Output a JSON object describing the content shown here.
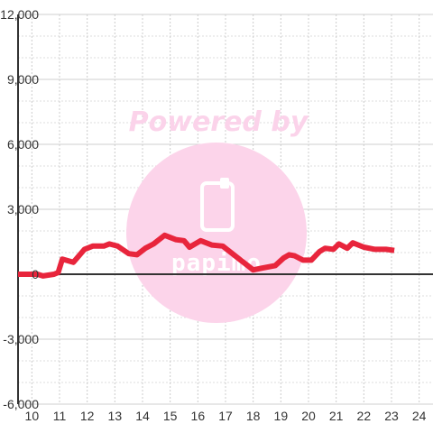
{
  "watermark": {
    "powered_by": "Powered by",
    "logo_text": "papimo",
    "logo_icon": "phone-icon"
  },
  "chart_data": {
    "type": "line",
    "title": "",
    "xlabel": "",
    "ylabel": "",
    "xlim": [
      9.5,
      24.5
    ],
    "ylim": [
      -6000,
      12000
    ],
    "x_ticks": [
      10,
      11,
      12,
      13,
      14,
      15,
      16,
      17,
      18,
      19,
      20,
      21,
      22,
      23,
      24
    ],
    "x_tick_labels": [
      "10",
      "11",
      "12",
      "13",
      "14",
      "15",
      "16",
      "17",
      "18",
      "19",
      "20",
      "21",
      "22",
      "23",
      "24"
    ],
    "y_ticks": [
      -6000,
      -3000,
      0,
      3000,
      6000,
      9000,
      12000
    ],
    "y_tick_labels": [
      "-6,000",
      "-3,000",
      "0",
      "3,000",
      "6,000",
      "9,000",
      "12,000"
    ],
    "grid": true,
    "line_color": "#e8253c",
    "series": [
      {
        "x": [
          9.5,
          10.2,
          10.4,
          10.8,
          10.95,
          11.1,
          11.5,
          11.9,
          12.2,
          12.6,
          12.8,
          13.1,
          13.5,
          13.8,
          14.1,
          14.4,
          14.8,
          15.2,
          15.5,
          15.7,
          16.1,
          16.5,
          16.9,
          17.2,
          17.5,
          17.8,
          18.0,
          18.3,
          18.8,
          19.1,
          19.3,
          19.5,
          19.8,
          20.1,
          20.4,
          20.6,
          20.9,
          21.1,
          21.4,
          21.6,
          22.0,
          22.4,
          22.8,
          23.1
        ],
        "y": [
          0,
          0,
          -80,
          0,
          80,
          700,
          550,
          1150,
          1300,
          1300,
          1400,
          1300,
          950,
          900,
          1200,
          1400,
          1800,
          1600,
          1550,
          1250,
          1550,
          1350,
          1300,
          1000,
          700,
          400,
          200,
          280,
          400,
          750,
          900,
          850,
          650,
          650,
          1050,
          1200,
          1150,
          1400,
          1200,
          1450,
          1250,
          1150,
          1150,
          1100
        ]
      }
    ]
  }
}
